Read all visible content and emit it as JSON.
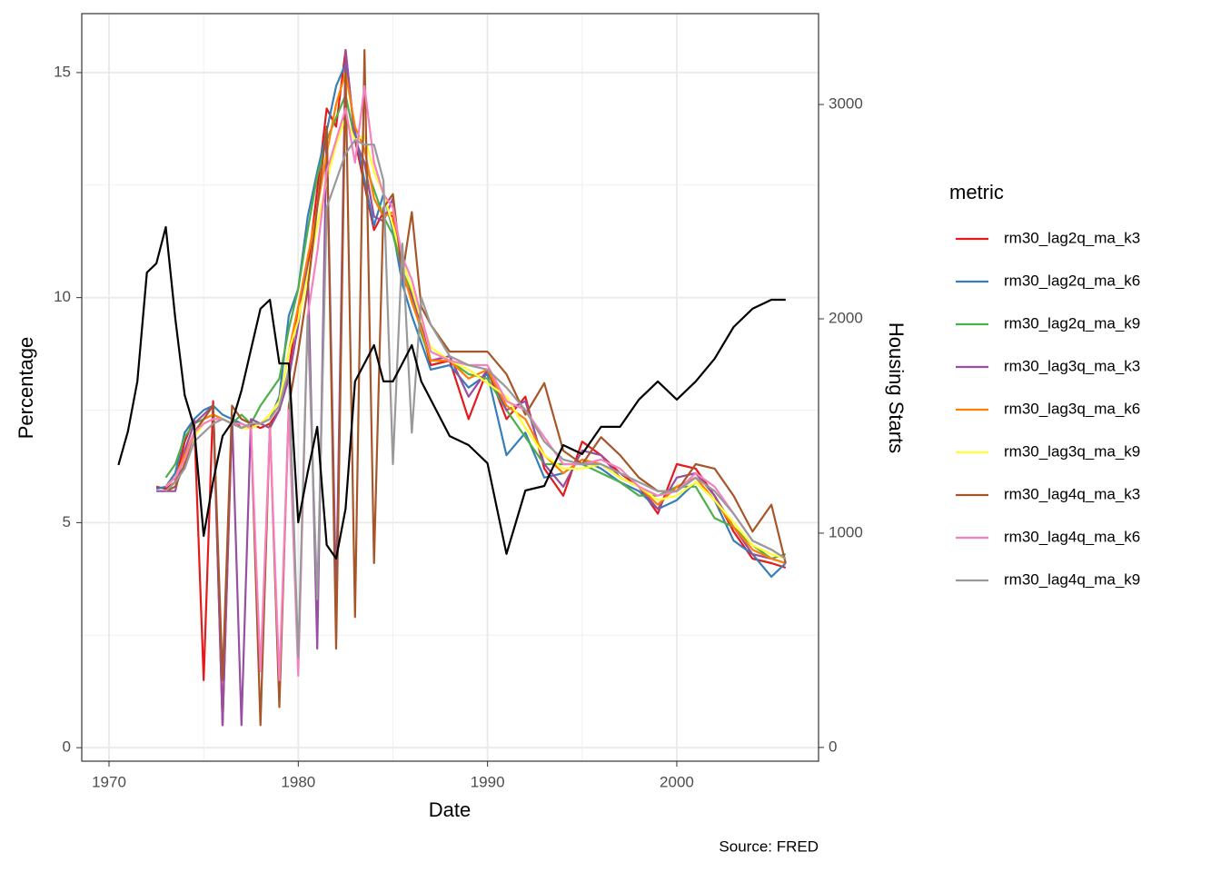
{
  "chart_data": {
    "type": "line",
    "caption": "Source: FRED",
    "xlabel": "Date",
    "ylabel": "Percentage",
    "y2label": "Housing Starts",
    "legend_title": "metric",
    "legend_position": "right",
    "grid": true,
    "minor_grid": true,
    "xlim": [
      1968.56,
      2007.49
    ],
    "xticks": [
      1970,
      1980,
      1990,
      2000
    ],
    "ylim": [
      -0.3,
      16.31
    ],
    "yticks": [
      0,
      5,
      10,
      15
    ],
    "y2lim": [
      -64,
      3424
    ],
    "y2ticks": [
      0,
      1000,
      2000,
      3000
    ],
    "x": [
      1970.5,
      1971,
      1971.5,
      1972,
      1972.5,
      1973,
      1973.5,
      1974,
      1974.5,
      1975,
      1975.5,
      1976,
      1976.5,
      1977,
      1977.5,
      1978,
      1978.5,
      1979,
      1979.5,
      1980,
      1980.5,
      1981,
      1981.5,
      1982,
      1982.5,
      1983,
      1983.5,
      1984,
      1984.5,
      1985,
      1985.5,
      1986,
      1986.5,
      1987,
      1988,
      1989,
      1990,
      1991,
      1992,
      1993,
      1994,
      1995,
      1996,
      1997,
      1998,
      1999,
      2000,
      2001,
      2002,
      2003,
      2004,
      2005,
      2005.75
    ],
    "series": [
      {
        "name": "rm30_lag2q_ma_k3",
        "color": "#e41a1c",
        "values": [
          null,
          null,
          null,
          null,
          5.8,
          5.75,
          5.9,
          6.8,
          7.3,
          1.5,
          7.7,
          0.5,
          7.3,
          7.1,
          7.2,
          7.1,
          7.2,
          7.5,
          8.4,
          9.8,
          10.6,
          12.4,
          14.2,
          13.8,
          15.5,
          13.5,
          12.5,
          11.5,
          11.9,
          11.8,
          10.5,
          10.0,
          9.3,
          8.5,
          8.6,
          7.3,
          8.4,
          7.3,
          7.8,
          6.2,
          5.6,
          6.8,
          6.5,
          6.1,
          5.8,
          5.2,
          6.3,
          6.2,
          5.6,
          4.8,
          4.2,
          4.1,
          4.0
        ]
      },
      {
        "name": "rm30_lag2q_ma_k6",
        "color": "#377eb8",
        "values": [
          null,
          null,
          null,
          null,
          5.75,
          5.8,
          6.1,
          7.0,
          7.3,
          7.5,
          7.6,
          7.4,
          7.3,
          7.2,
          7.1,
          7.2,
          7.3,
          7.8,
          9.6,
          10.2,
          11.8,
          12.8,
          13.7,
          14.7,
          15.2,
          13.7,
          12.6,
          11.6,
          12.3,
          11.5,
          10.3,
          9.6,
          9.0,
          8.4,
          8.5,
          8.0,
          8.3,
          6.5,
          7.0,
          6.0,
          6.1,
          6.4,
          6.2,
          5.9,
          5.7,
          5.3,
          5.5,
          5.9,
          5.5,
          4.6,
          4.3,
          3.8,
          4.1
        ]
      },
      {
        "name": "rm30_lag2q_ma_k9",
        "color": "#4daf4a",
        "values": [
          null,
          null,
          null,
          null,
          null,
          6.0,
          6.3,
          6.9,
          7.2,
          7.3,
          7.4,
          7.3,
          7.2,
          7.4,
          7.2,
          7.6,
          7.9,
          8.2,
          9.3,
          10.2,
          11.5,
          12.7,
          13.5,
          14.0,
          14.5,
          13.5,
          13.0,
          12.4,
          11.8,
          11.4,
          10.6,
          10.1,
          9.2,
          8.6,
          8.6,
          8.3,
          8.2,
          7.5,
          6.9,
          6.3,
          6.3,
          6.3,
          6.1,
          5.9,
          5.6,
          5.6,
          5.8,
          5.8,
          5.1,
          4.9,
          4.5,
          4.2,
          4.3
        ]
      },
      {
        "name": "rm30_lag3q_ma_k3",
        "color": "#984ea3",
        "values": [
          null,
          null,
          null,
          null,
          5.7,
          5.7,
          5.7,
          6.6,
          7.2,
          7.4,
          7.6,
          0.5,
          7.4,
          0.5,
          7.3,
          7.2,
          7.1,
          7.5,
          8.2,
          9.4,
          10.8,
          2.2,
          13.8,
          3.3,
          15.5,
          13.5,
          13.0,
          11.8,
          11.7,
          12.2,
          10.4,
          10.1,
          9.4,
          8.6,
          8.7,
          7.8,
          8.4,
          7.5,
          7.7,
          6.3,
          5.8,
          6.6,
          6.5,
          6.0,
          5.8,
          5.3,
          6.0,
          6.1,
          5.6,
          4.9,
          4.3,
          4.2,
          4.1
        ]
      },
      {
        "name": "rm30_lag3q_ma_k6",
        "color": "#ff7f00",
        "values": [
          null,
          null,
          null,
          null,
          null,
          5.8,
          6.0,
          6.5,
          7.0,
          7.3,
          7.4,
          7.3,
          7.2,
          7.1,
          7.1,
          7.2,
          7.4,
          7.7,
          8.8,
          9.8,
          10.9,
          12.0,
          13.2,
          14.3,
          15.0,
          13.8,
          13.3,
          12.2,
          11.8,
          11.9,
          10.6,
          9.9,
          9.3,
          8.6,
          8.6,
          8.2,
          8.4,
          7.6,
          7.3,
          6.5,
          6.1,
          6.4,
          6.3,
          6.0,
          5.8,
          5.4,
          5.8,
          6.0,
          5.5,
          4.9,
          4.4,
          4.2,
          4.1
        ]
      },
      {
        "name": "rm30_lag3q_ma_k9",
        "color": "#ffff33",
        "values": [
          null,
          null,
          null,
          null,
          null,
          5.8,
          6.0,
          6.4,
          6.9,
          7.2,
          7.3,
          7.3,
          7.2,
          7.1,
          7.1,
          7.2,
          7.4,
          7.7,
          8.8,
          9.5,
          10.5,
          11.6,
          12.6,
          13.4,
          14.0,
          13.5,
          13.6,
          12.8,
          12.3,
          11.6,
          10.8,
          10.2,
          9.5,
          8.9,
          8.6,
          8.4,
          8.1,
          7.8,
          7.1,
          6.5,
          6.2,
          6.2,
          6.3,
          6.0,
          5.8,
          5.5,
          5.6,
          5.9,
          5.5,
          5.0,
          4.5,
          4.3,
          4.2
        ]
      },
      {
        "name": "rm30_lag4q_ma_k3",
        "color": "#a65628",
        "values": [
          null,
          null,
          null,
          null,
          null,
          5.7,
          5.8,
          6.3,
          7.0,
          7.3,
          7.6,
          1.5,
          7.6,
          7.3,
          7.2,
          0.5,
          7.2,
          0.9,
          7.6,
          8.8,
          10.2,
          12.0,
          13.8,
          2.2,
          15.0,
          2.9,
          15.5,
          4.1,
          12.0,
          12.3,
          10.5,
          11.9,
          9.8,
          9.4,
          8.8,
          8.8,
          8.8,
          8.3,
          7.4,
          8.1,
          6.6,
          6.3,
          6.9,
          6.5,
          6.0,
          5.7,
          5.7,
          6.3,
          6.2,
          5.6,
          4.8,
          5.4,
          4.1
        ]
      },
      {
        "name": "rm30_lag4q_ma_k6",
        "color": "#f781bf",
        "values": [
          null,
          null,
          null,
          null,
          null,
          5.8,
          6.0,
          6.4,
          7.0,
          7.2,
          7.3,
          7.3,
          7.2,
          7.2,
          7.1,
          1.7,
          7.1,
          1.5,
          7.5,
          1.6,
          9.6,
          11.0,
          12.8,
          13.5,
          14.2,
          13.0,
          14.7,
          13.0,
          12.3,
          12.0,
          10.9,
          10.4,
          9.6,
          8.8,
          8.6,
          8.5,
          8.5,
          7.7,
          7.5,
          6.9,
          6.3,
          6.3,
          6.4,
          6.2,
          5.8,
          5.6,
          5.7,
          6.1,
          5.8,
          5.2,
          4.6,
          4.4,
          4.2
        ]
      },
      {
        "name": "rm30_lag4q_ma_k9",
        "color": "#999999",
        "values": [
          null,
          null,
          null,
          null,
          null,
          5.7,
          5.9,
          6.2,
          6.8,
          7.0,
          7.2,
          7.3,
          7.2,
          7.1,
          7.2,
          7.2,
          7.3,
          7.6,
          8.4,
          2.0,
          9.6,
          3.3,
          12.0,
          12.6,
          13.2,
          13.5,
          13.4,
          13.4,
          12.6,
          6.3,
          11.2,
          7.0,
          10.0,
          9.4,
          8.7,
          8.5,
          8.4,
          8.0,
          7.5,
          6.8,
          6.4,
          6.3,
          6.3,
          6.1,
          5.9,
          5.7,
          5.7,
          6.0,
          5.7,
          5.2,
          4.6,
          4.4,
          4.2
        ]
      }
    ],
    "y2_series": {
      "axis": "y2",
      "color": "#000000",
      "values": [
        1318,
        1475,
        1708,
        2216,
        2258,
        2428,
        2004,
        1644,
        1496,
        987,
        1242,
        1453,
        1517,
        1665,
        1856,
        2047,
        2089,
        1792,
        1792,
        1050,
        1284,
        1496,
        945,
        881,
        1114,
        1708,
        1792,
        1877,
        1708,
        1708,
        1792,
        1877,
        1708,
        1623,
        1453,
        1411,
        1326,
        903,
        1199,
        1220,
        1411,
        1369,
        1496,
        1496,
        1623,
        1708,
        1623,
        1708,
        1814,
        1962,
        2047,
        2089,
        2089
      ]
    }
  }
}
